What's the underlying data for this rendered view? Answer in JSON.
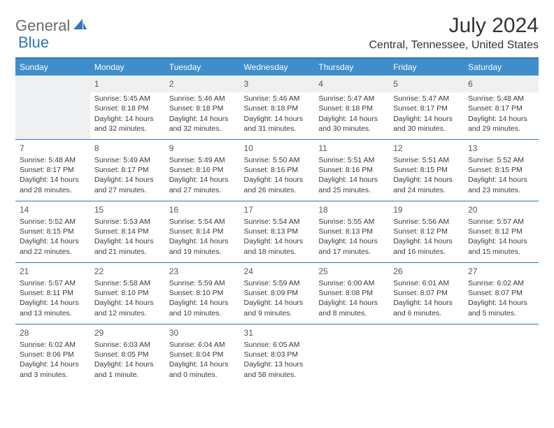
{
  "logo": {
    "part1": "General",
    "part2": "Blue"
  },
  "title": "July 2024",
  "location": "Central, Tennessee, United States",
  "colors": {
    "header_bg": "#3f8ecb",
    "header_border": "#2f77b8",
    "logo_gray": "#6b6b6b",
    "logo_blue": "#2f77b8",
    "text": "#333333",
    "daynum_band": "#eef0f1"
  },
  "day_headers": [
    "Sunday",
    "Monday",
    "Tuesday",
    "Wednesday",
    "Thursday",
    "Friday",
    "Saturday"
  ],
  "weeks": [
    [
      null,
      {
        "n": "1",
        "sr": "Sunrise: 5:45 AM",
        "ss": "Sunset: 8:18 PM",
        "d1": "Daylight: 14 hours",
        "d2": "and 32 minutes."
      },
      {
        "n": "2",
        "sr": "Sunrise: 5:46 AM",
        "ss": "Sunset: 8:18 PM",
        "d1": "Daylight: 14 hours",
        "d2": "and 32 minutes."
      },
      {
        "n": "3",
        "sr": "Sunrise: 5:46 AM",
        "ss": "Sunset: 8:18 PM",
        "d1": "Daylight: 14 hours",
        "d2": "and 31 minutes."
      },
      {
        "n": "4",
        "sr": "Sunrise: 5:47 AM",
        "ss": "Sunset: 8:18 PM",
        "d1": "Daylight: 14 hours",
        "d2": "and 30 minutes."
      },
      {
        "n": "5",
        "sr": "Sunrise: 5:47 AM",
        "ss": "Sunset: 8:17 PM",
        "d1": "Daylight: 14 hours",
        "d2": "and 30 minutes."
      },
      {
        "n": "6",
        "sr": "Sunrise: 5:48 AM",
        "ss": "Sunset: 8:17 PM",
        "d1": "Daylight: 14 hours",
        "d2": "and 29 minutes."
      }
    ],
    [
      {
        "n": "7",
        "sr": "Sunrise: 5:48 AM",
        "ss": "Sunset: 8:17 PM",
        "d1": "Daylight: 14 hours",
        "d2": "and 28 minutes."
      },
      {
        "n": "8",
        "sr": "Sunrise: 5:49 AM",
        "ss": "Sunset: 8:17 PM",
        "d1": "Daylight: 14 hours",
        "d2": "and 27 minutes."
      },
      {
        "n": "9",
        "sr": "Sunrise: 5:49 AM",
        "ss": "Sunset: 8:16 PM",
        "d1": "Daylight: 14 hours",
        "d2": "and 27 minutes."
      },
      {
        "n": "10",
        "sr": "Sunrise: 5:50 AM",
        "ss": "Sunset: 8:16 PM",
        "d1": "Daylight: 14 hours",
        "d2": "and 26 minutes."
      },
      {
        "n": "11",
        "sr": "Sunrise: 5:51 AM",
        "ss": "Sunset: 8:16 PM",
        "d1": "Daylight: 14 hours",
        "d2": "and 25 minutes."
      },
      {
        "n": "12",
        "sr": "Sunrise: 5:51 AM",
        "ss": "Sunset: 8:15 PM",
        "d1": "Daylight: 14 hours",
        "d2": "and 24 minutes."
      },
      {
        "n": "13",
        "sr": "Sunrise: 5:52 AM",
        "ss": "Sunset: 8:15 PM",
        "d1": "Daylight: 14 hours",
        "d2": "and 23 minutes."
      }
    ],
    [
      {
        "n": "14",
        "sr": "Sunrise: 5:52 AM",
        "ss": "Sunset: 8:15 PM",
        "d1": "Daylight: 14 hours",
        "d2": "and 22 minutes."
      },
      {
        "n": "15",
        "sr": "Sunrise: 5:53 AM",
        "ss": "Sunset: 8:14 PM",
        "d1": "Daylight: 14 hours",
        "d2": "and 21 minutes."
      },
      {
        "n": "16",
        "sr": "Sunrise: 5:54 AM",
        "ss": "Sunset: 8:14 PM",
        "d1": "Daylight: 14 hours",
        "d2": "and 19 minutes."
      },
      {
        "n": "17",
        "sr": "Sunrise: 5:54 AM",
        "ss": "Sunset: 8:13 PM",
        "d1": "Daylight: 14 hours",
        "d2": "and 18 minutes."
      },
      {
        "n": "18",
        "sr": "Sunrise: 5:55 AM",
        "ss": "Sunset: 8:13 PM",
        "d1": "Daylight: 14 hours",
        "d2": "and 17 minutes."
      },
      {
        "n": "19",
        "sr": "Sunrise: 5:56 AM",
        "ss": "Sunset: 8:12 PM",
        "d1": "Daylight: 14 hours",
        "d2": "and 16 minutes."
      },
      {
        "n": "20",
        "sr": "Sunrise: 5:57 AM",
        "ss": "Sunset: 8:12 PM",
        "d1": "Daylight: 14 hours",
        "d2": "and 15 minutes."
      }
    ],
    [
      {
        "n": "21",
        "sr": "Sunrise: 5:57 AM",
        "ss": "Sunset: 8:11 PM",
        "d1": "Daylight: 14 hours",
        "d2": "and 13 minutes."
      },
      {
        "n": "22",
        "sr": "Sunrise: 5:58 AM",
        "ss": "Sunset: 8:10 PM",
        "d1": "Daylight: 14 hours",
        "d2": "and 12 minutes."
      },
      {
        "n": "23",
        "sr": "Sunrise: 5:59 AM",
        "ss": "Sunset: 8:10 PM",
        "d1": "Daylight: 14 hours",
        "d2": "and 10 minutes."
      },
      {
        "n": "24",
        "sr": "Sunrise: 5:59 AM",
        "ss": "Sunset: 8:09 PM",
        "d1": "Daylight: 14 hours",
        "d2": "and 9 minutes."
      },
      {
        "n": "25",
        "sr": "Sunrise: 6:00 AM",
        "ss": "Sunset: 8:08 PM",
        "d1": "Daylight: 14 hours",
        "d2": "and 8 minutes."
      },
      {
        "n": "26",
        "sr": "Sunrise: 6:01 AM",
        "ss": "Sunset: 8:07 PM",
        "d1": "Daylight: 14 hours",
        "d2": "and 6 minutes."
      },
      {
        "n": "27",
        "sr": "Sunrise: 6:02 AM",
        "ss": "Sunset: 8:07 PM",
        "d1": "Daylight: 14 hours",
        "d2": "and 5 minutes."
      }
    ],
    [
      {
        "n": "28",
        "sr": "Sunrise: 6:02 AM",
        "ss": "Sunset: 8:06 PM",
        "d1": "Daylight: 14 hours",
        "d2": "and 3 minutes."
      },
      {
        "n": "29",
        "sr": "Sunrise: 6:03 AM",
        "ss": "Sunset: 8:05 PM",
        "d1": "Daylight: 14 hours",
        "d2": "and 1 minute."
      },
      {
        "n": "30",
        "sr": "Sunrise: 6:04 AM",
        "ss": "Sunset: 8:04 PM",
        "d1": "Daylight: 14 hours",
        "d2": "and 0 minutes."
      },
      {
        "n": "31",
        "sr": "Sunrise: 6:05 AM",
        "ss": "Sunset: 8:03 PM",
        "d1": "Daylight: 13 hours",
        "d2": "and 58 minutes."
      },
      null,
      null,
      null
    ]
  ]
}
